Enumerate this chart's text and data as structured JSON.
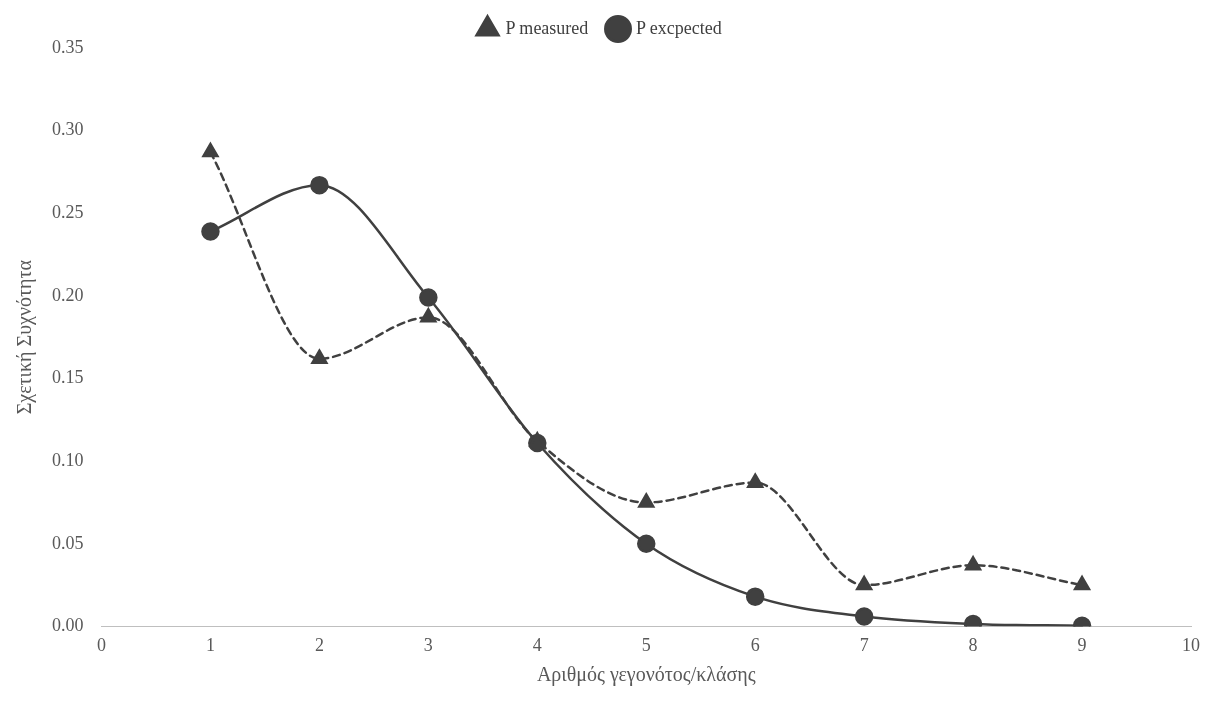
{
  "chart_data": {
    "type": "line",
    "xlabel": "Αριθμός γεγονότος/κλάσης",
    "ylabel": "Σχετική Συχνότητα",
    "x": [
      1,
      2,
      3,
      4,
      5,
      6,
      7,
      8,
      9
    ],
    "series": [
      {
        "name": "P measured",
        "color": "#404040",
        "marker": "triangle",
        "line_style": "dashed",
        "values": [
          0.287,
          0.162,
          0.187,
          0.112,
          0.075,
          0.087,
          0.025,
          0.037,
          0.025
        ]
      },
      {
        "name": "P excpected",
        "color": "#404040",
        "marker": "circle",
        "line_style": "solid",
        "values": [
          0.239,
          0.267,
          0.199,
          0.111,
          0.05,
          0.018,
          0.006,
          0.0015,
          0.0004
        ]
      }
    ],
    "xlim": [
      0,
      10
    ],
    "xticks": [
      0,
      1,
      2,
      3,
      4,
      5,
      6,
      7,
      8,
      9,
      10
    ],
    "ylim": [
      0,
      0.35
    ],
    "yticks": [
      {
        "value": 0,
        "label": "0.00"
      },
      {
        "value": 0.05,
        "label": "0.05"
      },
      {
        "value": 0.1,
        "label": "0.10"
      },
      {
        "value": 0.15,
        "label": "0.15"
      },
      {
        "value": 0.2,
        "label": "0.20"
      },
      {
        "value": 0.25,
        "label": "0.25"
      },
      {
        "value": 0.3,
        "label": "0.30"
      },
      {
        "value": 0.35,
        "label": "0.35"
      }
    ],
    "grid": false,
    "legend": "top"
  }
}
